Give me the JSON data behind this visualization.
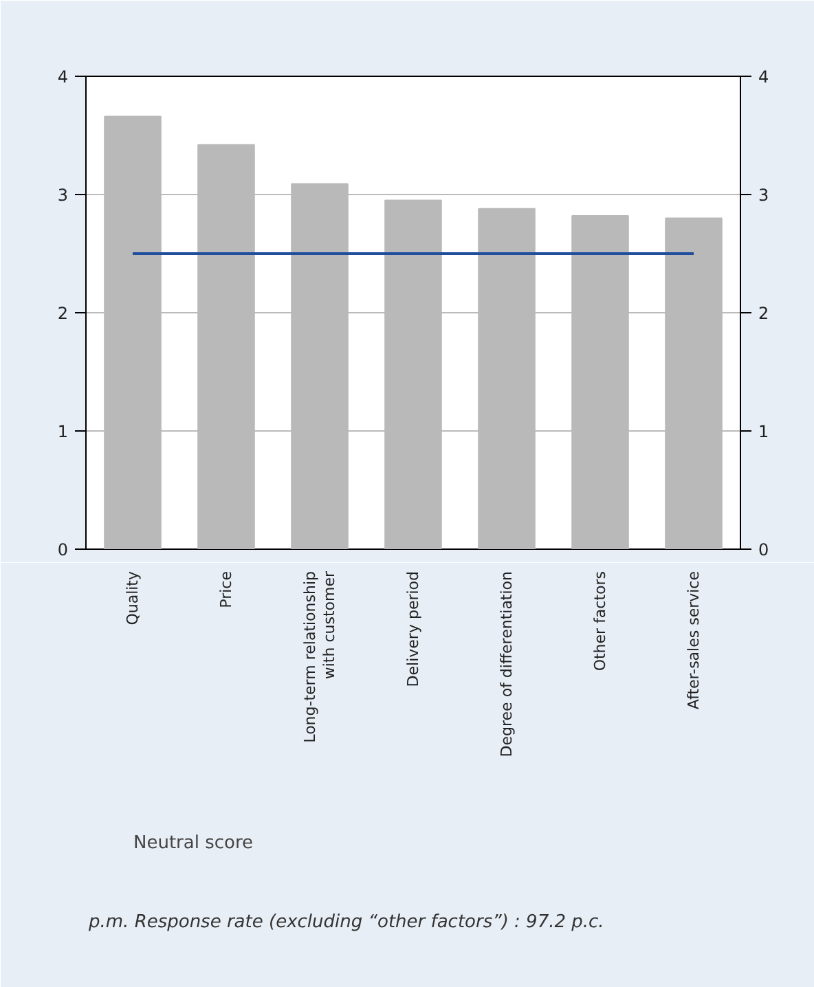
{
  "chart_data": {
    "type": "bar",
    "categories": [
      "Quality",
      "Price",
      "Long-term relationship\nwith customer",
      "Delivery period",
      "Degree of differentiation",
      "Other factors",
      "After-sales service"
    ],
    "series": [
      {
        "color": "#b9b9b9",
        "values": [
          3.66,
          3.42,
          3.09,
          2.95,
          2.88,
          2.82,
          2.8
        ]
      },
      {
        "type": "line",
        "name": "Neutral score",
        "color": "#1f4e9c",
        "values": [
          2.5,
          2.5,
          2.5,
          2.5,
          2.5,
          2.5,
          2.5
        ]
      }
    ],
    "ylim": [
      0,
      4
    ],
    "yticks": [
      0,
      1,
      2,
      3,
      4
    ],
    "y2lim": [
      0,
      4
    ],
    "y2ticks": [
      0,
      1,
      2,
      3,
      4
    ],
    "grid": "y",
    "legend": "bottom left",
    "marker": "none",
    "line_style": "solid",
    "annotations": [
      "p.m. Response rate (excluding “other factors”) : 97.2 p.c."
    ]
  }
}
